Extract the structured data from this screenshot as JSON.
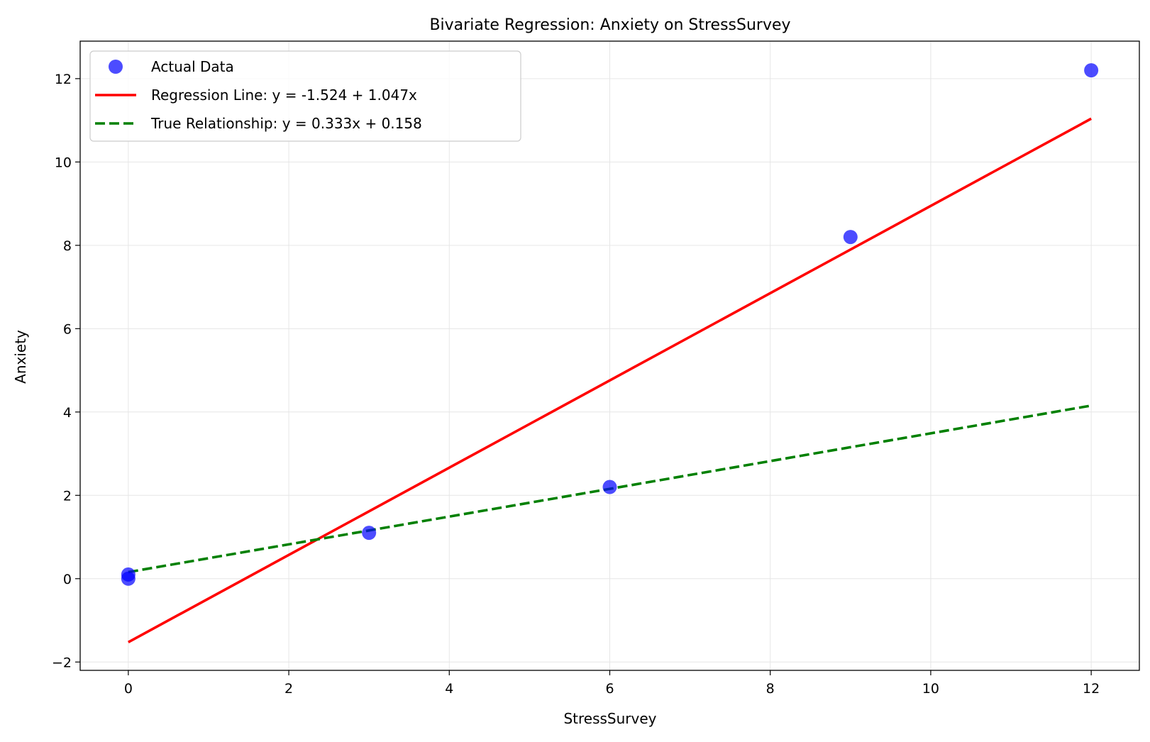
{
  "chart_data": {
    "type": "scatter",
    "title": "Bivariate Regression: Anxiety on StressSurvey",
    "xlabel": "StressSurvey",
    "ylabel": "Anxiety",
    "xlim": [
      -0.6,
      12.6
    ],
    "ylim": [
      -2.2,
      12.9
    ],
    "xticks": [
      0,
      2,
      4,
      6,
      8,
      10,
      12
    ],
    "yticks": [
      -2,
      0,
      2,
      4,
      6,
      8,
      10,
      12
    ],
    "grid": true,
    "legend_position": "upper-left",
    "series": [
      {
        "name": "Actual Data",
        "kind": "scatter",
        "color": "#0000ff",
        "points": [
          {
            "x": 0,
            "y": 0.0
          },
          {
            "x": 0,
            "y": 0.1
          },
          {
            "x": 3,
            "y": 1.1
          },
          {
            "x": 6,
            "y": 2.2
          },
          {
            "x": 9,
            "y": 8.2
          },
          {
            "x": 12,
            "y": 12.2
          }
        ]
      },
      {
        "name": "Regression Line: y = -1.524 + 1.047x",
        "kind": "line",
        "style": "solid",
        "color": "#ff0000",
        "points": [
          {
            "x": 0,
            "y": -1.524
          },
          {
            "x": 12,
            "y": 11.04
          }
        ]
      },
      {
        "name": "True Relationship: y = 0.333x + 0.158",
        "kind": "line",
        "style": "dashed",
        "color": "#008000",
        "points": [
          {
            "x": 0,
            "y": 0.158
          },
          {
            "x": 12,
            "y": 4.154
          }
        ]
      }
    ]
  }
}
